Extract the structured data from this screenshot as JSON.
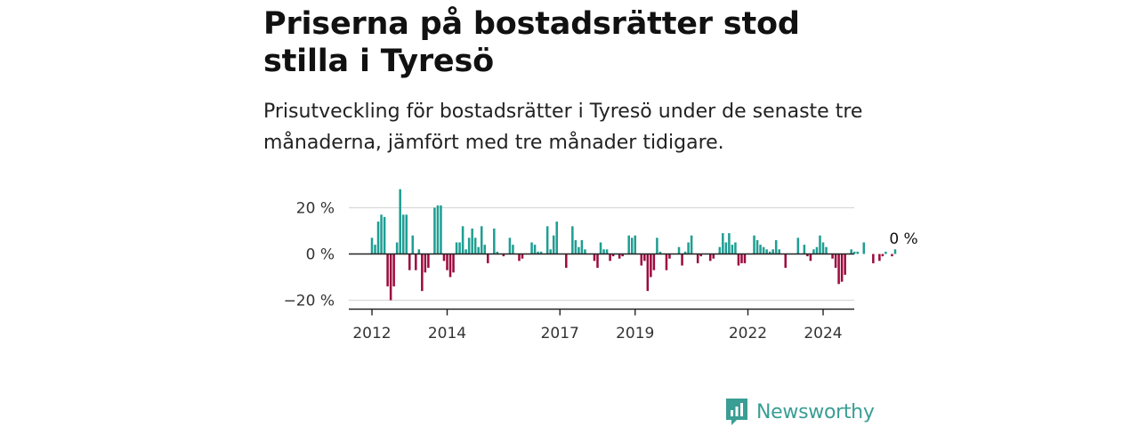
{
  "title": "Priserna på bostadsrätter stod stilla i Tyresö",
  "subtitle": "Prisutveckling för bostadsrätter i Tyresö under de senaste tre månaderna, jämfört med tre månader tidigare.",
  "brand": "Newsworthy",
  "colors": {
    "positive": "#1f9e93",
    "negative": "#9c0b3e",
    "grid": "#d9d9d9",
    "axis": "#222222",
    "brand": "#3a9e94"
  },
  "chart_data": {
    "type": "bar",
    "x_start": "2012-01",
    "x_end": "2024-04",
    "ylim": [
      -23,
      23
    ],
    "yticks": [
      20,
      0,
      -20
    ],
    "ytick_labels": [
      "20 %",
      "0 %",
      "−20 %"
    ],
    "xticks": [
      "2012",
      "2014",
      "2017",
      "2019",
      "2022",
      "2024"
    ],
    "last_value_label": "0 %",
    "grid": true,
    "values": [
      7,
      4,
      14,
      17,
      16,
      -14,
      -20,
      -14,
      5,
      28,
      17,
      17,
      -7,
      8,
      -7,
      2,
      -16,
      -8,
      -6,
      0,
      20,
      21,
      21,
      -3,
      -7,
      -10,
      -8,
      5,
      5,
      12,
      2,
      7,
      11,
      7,
      3,
      12,
      4,
      -4,
      0,
      11,
      1,
      0,
      -1,
      0,
      7,
      4,
      0,
      -3,
      -2,
      0,
      0,
      5,
      4,
      1,
      1,
      0,
      12,
      2,
      8,
      14,
      0,
      0,
      -6,
      0,
      12,
      6,
      3,
      6,
      2,
      0,
      0,
      -3,
      -6,
      5,
      2,
      2,
      -3,
      -1,
      0,
      -2,
      -1,
      0,
      8,
      7,
      8,
      0,
      -5,
      -3,
      -16,
      -10,
      -7,
      7,
      1,
      0,
      -7,
      -2,
      0,
      0,
      3,
      -5,
      1,
      5,
      8,
      0,
      -4,
      -1,
      0,
      0,
      -3,
      -2,
      0,
      3,
      9,
      5,
      9,
      4,
      5,
      -5,
      -4,
      -4,
      0,
      0,
      8,
      6,
      4,
      3,
      2,
      1,
      2,
      6,
      2,
      0,
      -6,
      0,
      0,
      0,
      7,
      0,
      4,
      -1,
      -3,
      2,
      3,
      8,
      5,
      3,
      0,
      -2,
      -6,
      -13,
      -12,
      -9,
      0,
      2,
      1,
      1,
      0,
      5,
      0,
      0,
      -4,
      0,
      -3,
      -1,
      1,
      0,
      -1,
      2,
      0
    ]
  }
}
